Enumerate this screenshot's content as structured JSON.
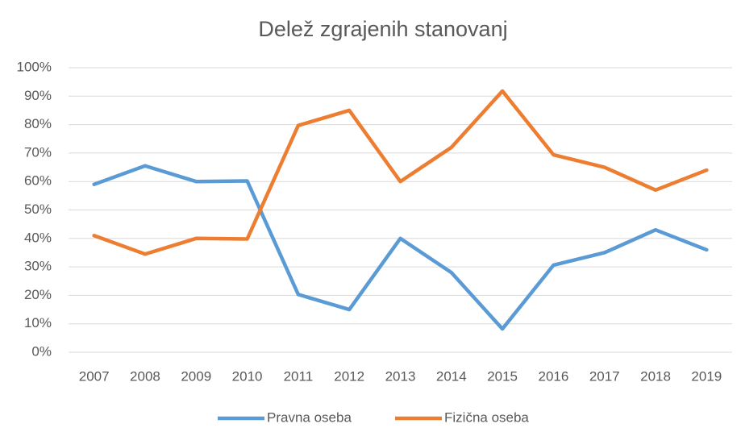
{
  "chart_data": {
    "type": "line",
    "title": "Delež zgrajenih stanovanj",
    "categories": [
      "2007",
      "2008",
      "2009",
      "2010",
      "2011",
      "2012",
      "2013",
      "2014",
      "2015",
      "2016",
      "2017",
      "2018",
      "2019"
    ],
    "series": [
      {
        "name": "Pravna oseba",
        "color": "#5b9bd5",
        "values": [
          59,
          65.5,
          60,
          60.2,
          20.3,
          15,
          40,
          28,
          8.2,
          30.6,
          35,
          43,
          36
        ]
      },
      {
        "name": "Fizična oseba",
        "color": "#ed7d31",
        "values": [
          41,
          34.5,
          40,
          39.8,
          79.7,
          85,
          60,
          72,
          91.8,
          69.4,
          65,
          57,
          64
        ]
      }
    ],
    "ylim": [
      0,
      100
    ],
    "yticks": [
      {
        "value": 0,
        "label": "0%"
      },
      {
        "value": 10,
        "label": "10%"
      },
      {
        "value": 20,
        "label": "20%"
      },
      {
        "value": 30,
        "label": "30%"
      },
      {
        "value": 40,
        "label": "40%"
      },
      {
        "value": 50,
        "label": "50%"
      },
      {
        "value": 60,
        "label": "60%"
      },
      {
        "value": 70,
        "label": "70%"
      },
      {
        "value": 80,
        "label": "80%"
      },
      {
        "value": 90,
        "label": "90%"
      },
      {
        "value": 100,
        "label": "100%"
      }
    ],
    "grid": true,
    "legend": "bottom"
  }
}
